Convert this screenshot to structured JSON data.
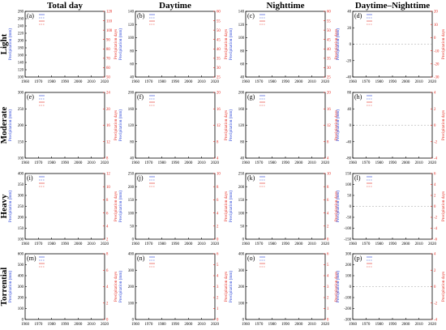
{
  "figure": {
    "columns": [
      "Total day",
      "Daytime",
      "Nighttime",
      "Daytime–Nighttime"
    ],
    "rows": [
      "Light",
      "Moderate",
      "Heavy",
      "Torrential"
    ]
  },
  "colors": {
    "amount_series": "#1f3bd6",
    "days_series": "#e3241b",
    "amount_axis": "#1f3bd6",
    "days_axis": "#e3241b",
    "frame": "#000000"
  },
  "chart_data": [
    {
      "type": "line",
      "panel": "(a)",
      "xlim": [
        1960,
        2020
      ],
      "x_ticks": [
        1960,
        1970,
        1980,
        1990,
        2000,
        2010,
        2020
      ],
      "ylabel": "Precipitation (mm)",
      "y2label": "Precipitation days",
      "ylim": [
        100,
        280
      ],
      "y2lim": [
        50,
        120
      ],
      "y_ticks": [
        100,
        120,
        140,
        160,
        180,
        200,
        220,
        240,
        260,
        280
      ],
      "y2_ticks": [
        50,
        60,
        70,
        80,
        90,
        100,
        110,
        120
      ],
      "series": []
    },
    {
      "type": "line",
      "panel": "(b)",
      "xlim": [
        1960,
        2020
      ],
      "x_ticks": [
        1960,
        1970,
        1980,
        1990,
        2000,
        2010,
        2020
      ],
      "ylabel": "Precipitation (mm)",
      "y2label": "Precipitation days",
      "ylim": [
        40,
        140
      ],
      "y2lim": [
        25,
        60
      ],
      "y_ticks": [
        40,
        60,
        80,
        100,
        120,
        140
      ],
      "y2_ticks": [
        25,
        30,
        35,
        40,
        45,
        50,
        55,
        60
      ],
      "series": []
    },
    {
      "type": "line",
      "panel": "(c)",
      "xlim": [
        1960,
        2020
      ],
      "x_ticks": [
        1960,
        1970,
        1980,
        1990,
        2000,
        2010,
        2020
      ],
      "ylabel": "Precipitation (mm)",
      "y2label": "Precipitation days",
      "ylim": [
        40,
        140
      ],
      "y2lim": [
        25,
        60
      ],
      "y_ticks": [
        40,
        60,
        80,
        100,
        120,
        140
      ],
      "y2_ticks": [
        25,
        30,
        35,
        40,
        45,
        50,
        55,
        60
      ],
      "series": []
    },
    {
      "type": "line",
      "panel": "(d)",
      "xlim": [
        1960,
        2020
      ],
      "x_ticks": [
        1960,
        1970,
        1980,
        1990,
        2000,
        2010,
        2020
      ],
      "ylabel": "Precipitation (mm)",
      "y2label": "Precipitation days",
      "ylim": [
        -40,
        40
      ],
      "y2lim": [
        -30,
        20
      ],
      "y_ticks": [
        -40,
        -20,
        0,
        20,
        40
      ],
      "y2_ticks": [
        -30,
        -20,
        -10,
        0,
        10,
        20
      ],
      "series": []
    },
    {
      "type": "line",
      "panel": "(e)",
      "xlim": [
        1960,
        2020
      ],
      "x_ticks": [
        1960,
        1970,
        1980,
        1990,
        2000,
        2010,
        2020
      ],
      "ylabel": "Precipitation (mm)",
      "y2label": "Precipitation days",
      "ylim": [
        100,
        300
      ],
      "y2lim": [
        8,
        24
      ],
      "y_ticks": [
        100,
        150,
        200,
        250,
        300
      ],
      "y2_ticks": [
        8,
        12,
        16,
        20,
        24
      ],
      "series": []
    },
    {
      "type": "line",
      "panel": "(f)",
      "xlim": [
        1960,
        2020
      ],
      "x_ticks": [
        1960,
        1970,
        1980,
        1990,
        2000,
        2010,
        2020
      ],
      "ylabel": "Precipitation (mm)",
      "y2label": "Precipitation days",
      "ylim": [
        40,
        200
      ],
      "y2lim": [
        4,
        20
      ],
      "y_ticks": [
        40,
        80,
        120,
        160,
        200
      ],
      "y2_ticks": [
        4,
        8,
        12,
        16,
        20
      ],
      "series": []
    },
    {
      "type": "line",
      "panel": "(g)",
      "xlim": [
        1960,
        2020
      ],
      "x_ticks": [
        1960,
        1970,
        1980,
        1990,
        2000,
        2010,
        2020
      ],
      "ylabel": "Precipitation (mm)",
      "y2label": "Precipitation days",
      "ylim": [
        40,
        200
      ],
      "y2lim": [
        4,
        20
      ],
      "y_ticks": [
        40,
        80,
        120,
        160,
        200
      ],
      "y2_ticks": [
        4,
        8,
        12,
        16,
        20
      ],
      "series": []
    },
    {
      "type": "line",
      "panel": "(h)",
      "xlim": [
        1960,
        2020
      ],
      "x_ticks": [
        1960,
        1970,
        1980,
        1990,
        2000,
        2010,
        2020
      ],
      "ylabel": "Precipitation (mm)",
      "y2label": "Precipitation days",
      "ylim": [
        -80,
        80
      ],
      "y2lim": [
        -4,
        4
      ],
      "y_ticks": [
        -80,
        -40,
        0,
        40,
        80
      ],
      "y2_ticks": [
        -4,
        -2,
        0,
        2,
        4
      ],
      "series": []
    },
    {
      "type": "line",
      "panel": "(i)",
      "xlim": [
        1960,
        2020
      ],
      "x_ticks": [
        1960,
        1970,
        1980,
        1990,
        2000,
        2010,
        2020
      ],
      "ylabel": "Precipitation (mm)",
      "y2label": "Precipitation days",
      "ylim": [
        100,
        400
      ],
      "y2lim": [
        2,
        12
      ],
      "y_ticks": [
        100,
        150,
        200,
        250,
        300,
        350,
        400
      ],
      "y2_ticks": [
        2,
        4,
        6,
        8,
        10,
        12
      ],
      "series": []
    },
    {
      "type": "line",
      "panel": "(j)",
      "xlim": [
        1960,
        2020
      ],
      "x_ticks": [
        1960,
        1970,
        1980,
        1990,
        2000,
        2010,
        2020
      ],
      "ylabel": "Precipitation (mm)",
      "y2label": "Precipitation days",
      "ylim": [
        0,
        250
      ],
      "y2lim": [
        0,
        10
      ],
      "y_ticks": [
        0,
        50,
        100,
        150,
        200,
        250
      ],
      "y2_ticks": [
        0,
        2,
        4,
        6,
        8,
        10
      ],
      "series": []
    },
    {
      "type": "line",
      "panel": "(k)",
      "xlim": [
        1960,
        2020
      ],
      "x_ticks": [
        1960,
        1970,
        1980,
        1990,
        2000,
        2010,
        2020
      ],
      "ylabel": "Precipitation (mm)",
      "y2label": "Precipitation days",
      "ylim": [
        0,
        250
      ],
      "y2lim": [
        0,
        10
      ],
      "y_ticks": [
        0,
        50,
        100,
        150,
        200,
        250
      ],
      "y2_ticks": [
        0,
        2,
        4,
        6,
        8,
        10
      ],
      "series": []
    },
    {
      "type": "line",
      "panel": "(l)",
      "xlim": [
        1960,
        2020
      ],
      "x_ticks": [
        1960,
        1970,
        1980,
        1990,
        2000,
        2010,
        2020
      ],
      "ylabel": "Precipitation (mm)",
      "y2label": "Precipitation days",
      "ylim": [
        -150,
        150
      ],
      "y2lim": [
        -6,
        6
      ],
      "y_ticks": [
        -150,
        -100,
        -50,
        0,
        50,
        100,
        150
      ],
      "y2_ticks": [
        -6,
        -4,
        -2,
        0,
        2,
        4,
        6
      ],
      "series": []
    },
    {
      "type": "line",
      "panel": "(m)",
      "xlim": [
        1960,
        2020
      ],
      "x_ticks": [
        1960,
        1970,
        1980,
        1990,
        2000,
        2010,
        2020
      ],
      "ylabel": "Precipitation (mm)",
      "y2label": "Precipitation days",
      "ylim": [
        0,
        600
      ],
      "y2lim": [
        0,
        8
      ],
      "y_ticks": [
        0,
        100,
        200,
        300,
        400,
        500,
        600
      ],
      "y2_ticks": [
        0,
        2,
        4,
        6,
        8
      ],
      "series": []
    },
    {
      "type": "line",
      "panel": "(n)",
      "xlim": [
        1960,
        2020
      ],
      "x_ticks": [
        1960,
        1970,
        1980,
        1990,
        2000,
        2010,
        2020
      ],
      "ylabel": "Precipitation (mm)",
      "y2label": "Precipitation days",
      "ylim": [
        0,
        400
      ],
      "y2lim": [
        0,
        6
      ],
      "y_ticks": [
        0,
        100,
        200,
        300,
        400
      ],
      "y2_ticks": [
        0,
        1,
        2,
        3,
        4,
        5,
        6
      ],
      "series": []
    },
    {
      "type": "line",
      "panel": "(o)",
      "xlim": [
        1960,
        2020
      ],
      "x_ticks": [
        1960,
        1970,
        1980,
        1990,
        2000,
        2010,
        2020
      ],
      "ylabel": "Precipitation (mm)",
      "y2label": "Precipitation days",
      "ylim": [
        0,
        400
      ],
      "y2lim": [
        0,
        6
      ],
      "y_ticks": [
        0,
        100,
        200,
        300,
        400
      ],
      "y2_ticks": [
        0,
        1,
        2,
        3,
        4,
        5,
        6
      ],
      "series": []
    },
    {
      "type": "line",
      "panel": "(p)",
      "xlim": [
        1960,
        2020
      ],
      "x_ticks": [
        1960,
        1970,
        1980,
        1990,
        2000,
        2010,
        2020
      ],
      "ylabel": "Precipitation (mm)",
      "y2label": "Precipitation days",
      "ylim": [
        -300,
        300
      ],
      "y2lim": [
        -4,
        4
      ],
      "y_ticks": [
        -300,
        -200,
        -100,
        0,
        100,
        200,
        300
      ],
      "y2_ticks": [
        -4,
        -2,
        0,
        2,
        4
      ],
      "series": []
    }
  ]
}
